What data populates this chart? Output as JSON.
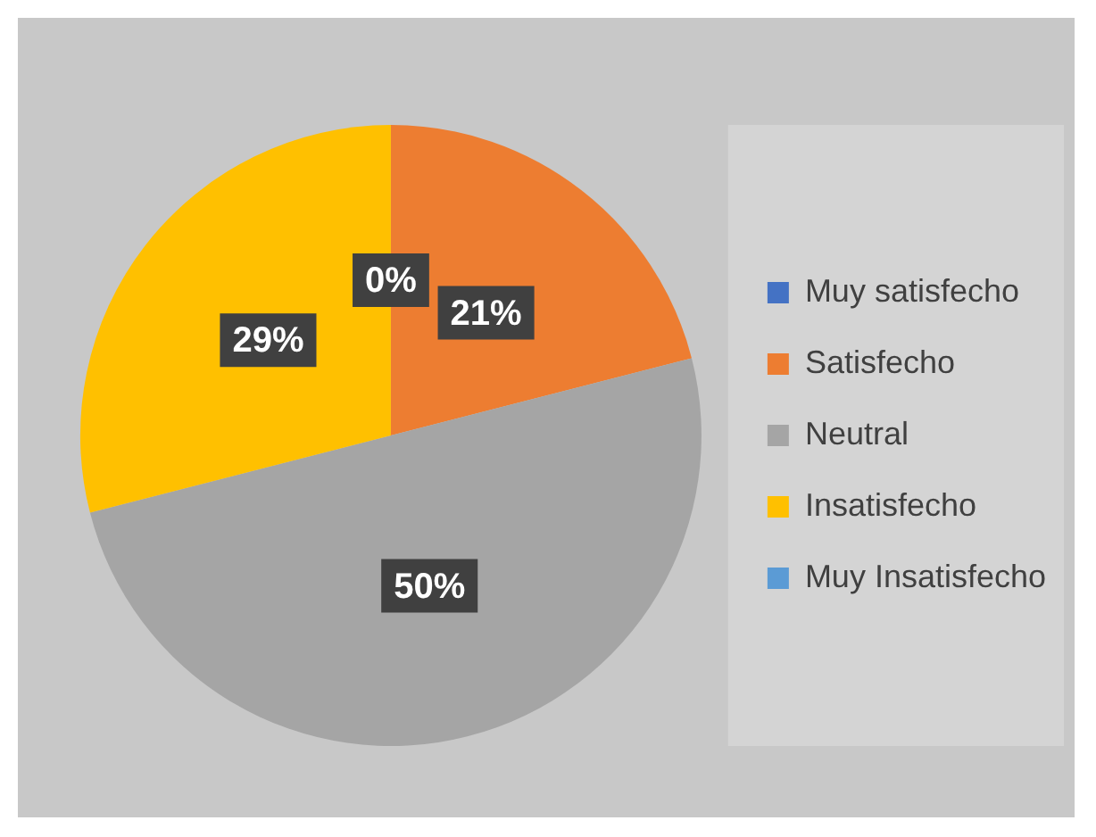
{
  "chart_data": {
    "type": "pie",
    "categories": [
      "Muy satisfecho",
      "Satisfecho",
      "Neutral",
      "Insatisfecho",
      "Muy Insatisfecho"
    ],
    "values": [
      0,
      21,
      50,
      29,
      0
    ],
    "colors": [
      "#4472c4",
      "#ed7d31",
      "#a5a5a5",
      "#ffc000",
      "#5b9bd5"
    ],
    "value_labels": [
      "0%",
      "21%",
      "50%",
      "29%",
      null
    ],
    "legend": "right"
  }
}
